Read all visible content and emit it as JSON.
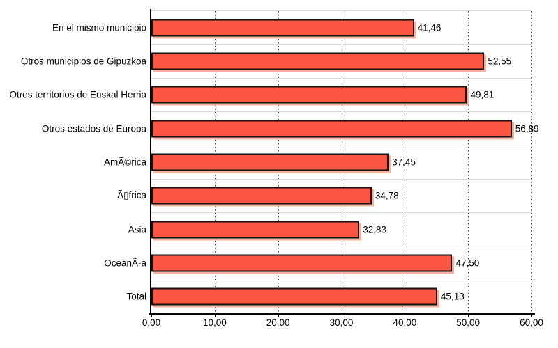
{
  "chart_data": {
    "type": "bar",
    "orientation": "horizontal",
    "title": "",
    "xlabel": "",
    "ylabel": "",
    "categories": [
      "En el mismo municipio",
      "Otros municipios de Gipuzkoa",
      "Otros territorios de Euskal Herria",
      "Otros estados de Europa",
      "AmÃ©rica",
      "Ã▯frica",
      "Asia",
      "OceanÃ-a",
      "Total"
    ],
    "values": [
      41.46,
      52.55,
      49.81,
      56.89,
      37.45,
      34.78,
      32.83,
      47.5,
      45.13
    ],
    "value_labels": [
      "41,46",
      "52,55",
      "49,81",
      "56,89",
      "37,45",
      "34,78",
      "32,83",
      "47,50",
      "45,13"
    ],
    "x_ticks": {
      "values": [
        0,
        10,
        20,
        30,
        40,
        50,
        60
      ],
      "labels": [
        "0,00",
        "10,00",
        "20,00",
        "30,00",
        "40,00",
        "50,00",
        "60,00"
      ]
    },
    "xlim": [
      0,
      60
    ],
    "grid": "vertical-dotted",
    "legend": "none",
    "colors": {
      "bar_fill": "#FA5540",
      "bar_border": "#131313",
      "bar_shadow": "#F6B2A0",
      "row_separator": "#D9D9D9",
      "gridline": "#3C3C3C",
      "axis": "#000000",
      "text": "#000000"
    }
  }
}
